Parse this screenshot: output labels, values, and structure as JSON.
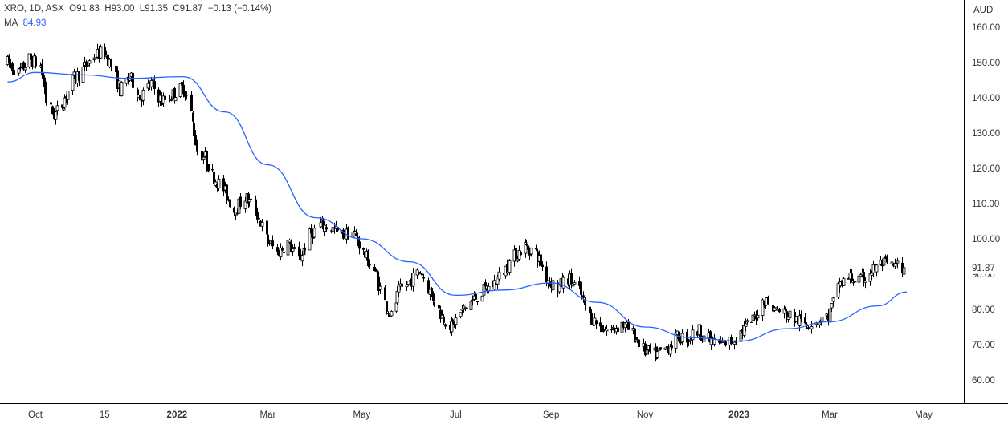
{
  "header": {
    "symbol": "XRO, 1D, ASX",
    "o_label": "O",
    "o_value": "91.83",
    "h_label": "H",
    "h_value": "93.00",
    "l_label": "L",
    "l_value": "91.35",
    "c_label": "C",
    "c_value": "91.87",
    "change": "−0.13 (−0.14%)",
    "ma_label": "MA",
    "ma_value": "84.93"
  },
  "colors": {
    "candle": "#000000",
    "ma": "#2962ff",
    "text": "#333333",
    "axis_line": "#000000",
    "price_tag_bg": "#ffffff"
  },
  "chart_data": {
    "type": "candlestick",
    "currency": "AUD",
    "ylim": [
      55,
      163
    ],
    "y_ticks": [
      "160.00",
      "150.00",
      "140.00",
      "130.00",
      "120.00",
      "110.00",
      "100.00",
      "90.00",
      "80.00",
      "70.00",
      "60.00"
    ],
    "x_ticks": [
      {
        "label": "Oct",
        "date": "2021-10-01",
        "bold": false
      },
      {
        "label": "15",
        "date": "2021-11-15",
        "bold": false
      },
      {
        "label": "2022",
        "date": "2022-01-01",
        "bold": true
      },
      {
        "label": "Mar",
        "date": "2022-03-01",
        "bold": false
      },
      {
        "label": "May",
        "date": "2022-05-01",
        "bold": false
      },
      {
        "label": "Jul",
        "date": "2022-07-01",
        "bold": false
      },
      {
        "label": "Sep",
        "date": "2022-09-01",
        "bold": false
      },
      {
        "label": "Nov",
        "date": "2022-11-01",
        "bold": false
      },
      {
        "label": "2023",
        "date": "2023-01-01",
        "bold": true
      },
      {
        "label": "Mar",
        "date": "2023-03-01",
        "bold": false
      },
      {
        "label": "May",
        "date": "2023-05-01",
        "bold": false
      }
    ],
    "last_price": "91.87",
    "price_path": [
      [
        "2021-09-13",
        150
      ],
      [
        "2021-09-20",
        147
      ],
      [
        "2021-09-27",
        151
      ],
      [
        "2021-10-04",
        149
      ],
      [
        "2021-10-08",
        139
      ],
      [
        "2021-10-13",
        135
      ],
      [
        "2021-10-18",
        138
      ],
      [
        "2021-10-25",
        145
      ],
      [
        "2021-11-01",
        148
      ],
      [
        "2021-11-08",
        152
      ],
      [
        "2021-11-15",
        153
      ],
      [
        "2021-11-20",
        148
      ],
      [
        "2021-11-25",
        142
      ],
      [
        "2021-12-01",
        146
      ],
      [
        "2021-12-08",
        140
      ],
      [
        "2021-12-15",
        144
      ],
      [
        "2021-12-22",
        139
      ],
      [
        "2021-12-29",
        141
      ],
      [
        "2022-01-05",
        143
      ],
      [
        "2022-01-09",
        138
      ],
      [
        "2022-01-14",
        125
      ],
      [
        "2022-01-19",
        123
      ],
      [
        "2022-01-24",
        118
      ],
      [
        "2022-01-31",
        114
      ],
      [
        "2022-02-07",
        108
      ],
      [
        "2022-02-14",
        112
      ],
      [
        "2022-02-21",
        108
      ],
      [
        "2022-02-28",
        100
      ],
      [
        "2022-03-07",
        96
      ],
      [
        "2022-03-14",
        99
      ],
      [
        "2022-03-21",
        94
      ],
      [
        "2022-03-28",
        101
      ],
      [
        "2022-04-04",
        104
      ],
      [
        "2022-04-11",
        103
      ],
      [
        "2022-04-18",
        101
      ],
      [
        "2022-04-25",
        102
      ],
      [
        "2022-05-02",
        96
      ],
      [
        "2022-05-09",
        91
      ],
      [
        "2022-05-16",
        82
      ],
      [
        "2022-05-20",
        78
      ],
      [
        "2022-05-25",
        85
      ],
      [
        "2022-06-01",
        88
      ],
      [
        "2022-06-08",
        91
      ],
      [
        "2022-06-15",
        84
      ],
      [
        "2022-06-22",
        78
      ],
      [
        "2022-06-28",
        75
      ],
      [
        "2022-07-04",
        79
      ],
      [
        "2022-07-11",
        82
      ],
      [
        "2022-07-18",
        85
      ],
      [
        "2022-07-25",
        87
      ],
      [
        "2022-08-01",
        91
      ],
      [
        "2022-08-08",
        95
      ],
      [
        "2022-08-15",
        98
      ],
      [
        "2022-08-22",
        96
      ],
      [
        "2022-08-29",
        89
      ],
      [
        "2022-09-05",
        86
      ],
      [
        "2022-09-12",
        89
      ],
      [
        "2022-09-19",
        85
      ],
      [
        "2022-09-26",
        78
      ],
      [
        "2022-10-03",
        75
      ],
      [
        "2022-10-10",
        74
      ],
      [
        "2022-10-17",
        76
      ],
      [
        "2022-10-24",
        73
      ],
      [
        "2022-11-01",
        68
      ],
      [
        "2022-11-08",
        67
      ],
      [
        "2022-11-15",
        69
      ],
      [
        "2022-11-22",
        72
      ],
      [
        "2022-11-29",
        72
      ],
      [
        "2022-12-06",
        74
      ],
      [
        "2022-12-13",
        71
      ],
      [
        "2022-12-20",
        70
      ],
      [
        "2022-12-27",
        71
      ],
      [
        "2023-01-03",
        74
      ],
      [
        "2023-01-10",
        77
      ],
      [
        "2023-01-17",
        83
      ],
      [
        "2023-01-24",
        80
      ],
      [
        "2023-01-31",
        79
      ],
      [
        "2023-02-07",
        77
      ],
      [
        "2023-02-14",
        76
      ],
      [
        "2023-02-21",
        77
      ],
      [
        "2023-02-28",
        78
      ],
      [
        "2023-03-07",
        87
      ],
      [
        "2023-03-14",
        89
      ],
      [
        "2023-03-21",
        88
      ],
      [
        "2023-03-28",
        91
      ],
      [
        "2023-04-04",
        93
      ],
      [
        "2023-04-11",
        92
      ],
      [
        "2023-04-18",
        92
      ]
    ],
    "ma_series": {
      "name": "MA",
      "points": [
        [
          "2021-09-13",
          144.5
        ],
        [
          "2021-10-01",
          147.2
        ],
        [
          "2021-11-01",
          146.5
        ],
        [
          "2021-12-01",
          145.5
        ],
        [
          "2022-01-05",
          146.0
        ],
        [
          "2022-02-01",
          136.0
        ],
        [
          "2022-03-01",
          121.0
        ],
        [
          "2022-04-01",
          106.0
        ],
        [
          "2022-05-01",
          100.0
        ],
        [
          "2022-06-01",
          93.5
        ],
        [
          "2022-07-01",
          84.0
        ],
        [
          "2022-08-01",
          85.5
        ],
        [
          "2022-09-01",
          87.5
        ],
        [
          "2022-10-01",
          82.0
        ],
        [
          "2022-11-01",
          75.0
        ],
        [
          "2022-12-01",
          72.0
        ],
        [
          "2023-01-01",
          71.0
        ],
        [
          "2023-02-01",
          74.5
        ],
        [
          "2023-03-01",
          76.5
        ],
        [
          "2023-04-01",
          81.0
        ],
        [
          "2023-04-20",
          84.93
        ]
      ]
    }
  }
}
